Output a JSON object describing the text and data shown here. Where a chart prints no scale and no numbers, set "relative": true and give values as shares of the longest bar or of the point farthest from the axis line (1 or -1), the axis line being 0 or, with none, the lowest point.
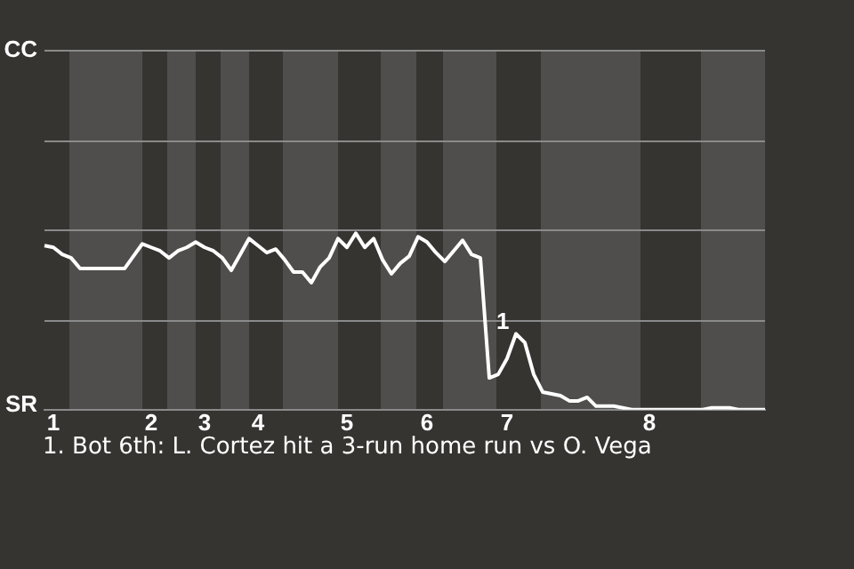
{
  "chart_data": {
    "type": "line",
    "relative": true,
    "categories": [
      null,
      "1",
      null,
      null,
      null,
      null,
      null,
      null,
      null,
      null,
      null,
      null,
      "2",
      null,
      null,
      null,
      null,
      null,
      "3",
      null,
      null,
      null,
      null,
      null,
      "4",
      null,
      null,
      null,
      null,
      null,
      null,
      null,
      null,
      null,
      "5",
      null,
      null,
      null,
      null,
      null,
      null,
      null,
      null,
      "6",
      null,
      null,
      null,
      null,
      null,
      null,
      null,
      null,
      "7",
      null,
      null,
      null,
      null,
      null,
      null,
      null,
      null,
      null,
      null,
      null,
      null,
      null,
      null,
      null,
      "8",
      null,
      null,
      null,
      null,
      null,
      null,
      null,
      null,
      null,
      null,
      null,
      null,
      null
    ],
    "series": [
      {
        "color": "#ffffff",
        "values": [
          0.93,
          0.92,
          0.88,
          0.86,
          0.8,
          0.8,
          0.8,
          0.8,
          0.8,
          0.8,
          0.87,
          0.94,
          0.92,
          0.9,
          0.86,
          0.9,
          0.92,
          0.95,
          0.92,
          0.9,
          0.86,
          0.79,
          0.88,
          0.97,
          0.93,
          0.89,
          0.91,
          0.85,
          0.78,
          0.78,
          0.72,
          0.81,
          0.86,
          0.97,
          0.92,
          1,
          0.92,
          0.97,
          0.85,
          0.77,
          0.83,
          0.87,
          0.98,
          0.95,
          0.89,
          0.84,
          0.9,
          0.96,
          0.88,
          0.86,
          0.18,
          0.2,
          0.29,
          0.43,
          0.38,
          0.2,
          0.1,
          0.09,
          0.08,
          0.05,
          0.05,
          0.07,
          0.02,
          0.02,
          0.02,
          0.01,
          0,
          0,
          0,
          0,
          0,
          0,
          0,
          0,
          0,
          0.01,
          0.01,
          0.01,
          0,
          0,
          0,
          0
        ]
      }
    ],
    "marker": "none",
    "line_style": "solid",
    "ref_lines": [
      {
        "axis": "y",
        "value": 0.51,
        "color": "#8a8a8a"
      },
      {
        "axis": "y",
        "value": 1.02,
        "color": "#8a8a8a"
      },
      {
        "axis": "y",
        "value": 1.53,
        "color": "#8a8a8a"
      },
      {
        "axis": "y",
        "value": 2.04,
        "color": "#8a8a8a"
      }
    ],
    "annotations": [
      "CC",
      "SR",
      "1",
      "1. Bot 6th: L. Cortez hit a 3-run home run vs O. Vega"
    ]
  }
}
